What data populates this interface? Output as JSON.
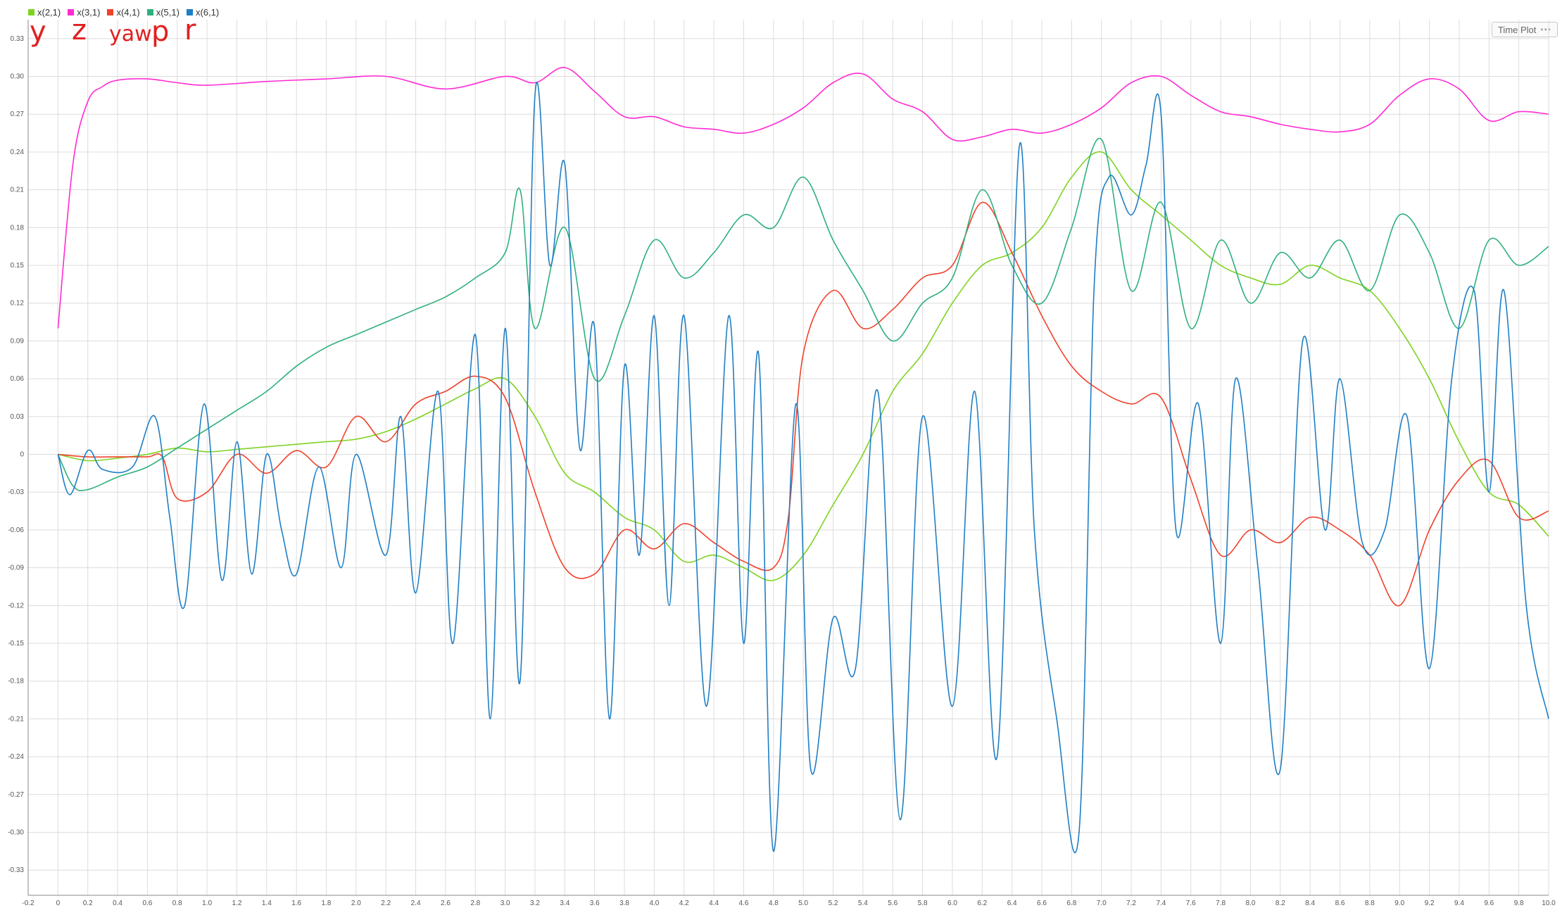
{
  "legend": [
    {
      "label": "x(2,1)",
      "color": "#7ed321"
    },
    {
      "label": "x(3,1)",
      "color": "#ff2ad4"
    },
    {
      "label": "x(4,1)",
      "color": "#f0412a"
    },
    {
      "label": "x(5,1)",
      "color": "#2eb07a"
    },
    {
      "label": "x(6,1)",
      "color": "#1f7ec4"
    }
  ],
  "toolbar": {
    "time_plot_label": "Time Plot",
    "more_label": "•••"
  },
  "annotations": [
    "y",
    "z",
    "yaw",
    "p",
    "r"
  ],
  "chart_data": {
    "type": "line",
    "title": "",
    "xlabel": "",
    "ylabel": "",
    "xlim": [
      -0.2,
      10.0
    ],
    "ylim": [
      -0.35,
      0.345
    ],
    "grid": true,
    "legend_position": "top-left",
    "x_ticks": [
      "-0.2",
      "0",
      "0.2",
      "0.4",
      "0.6",
      "0.8",
      "1.0",
      "1.2",
      "1.4",
      "1.6",
      "1.8",
      "2.0",
      "2.2",
      "2.4",
      "2.6",
      "2.8",
      "3.0",
      "3.2",
      "3.4",
      "3.6",
      "3.8",
      "4.0",
      "4.2",
      "4.4",
      "4.6",
      "4.8",
      "5.0",
      "5.2",
      "5.4",
      "5.6",
      "5.8",
      "6.0",
      "6.2",
      "6.4",
      "6.6",
      "6.8",
      "7.0",
      "7.2",
      "7.4",
      "7.6",
      "7.8",
      "8.0",
      "8.2",
      "8.4",
      "8.6",
      "8.8",
      "9.0",
      "9.2",
      "9.4",
      "9.6",
      "9.8",
      "10.0"
    ],
    "y_ticks": [
      "0.33",
      "0.30",
      "0.27",
      "0.24",
      "0.21",
      "0.18",
      "0.15",
      "0.12",
      "0.09",
      "0.06",
      "0.03",
      "0",
      "-0.03",
      "-0.06",
      "-0.09",
      "-0.12",
      "-0.15",
      "-0.18",
      "-0.21",
      "-0.24",
      "-0.27",
      "-0.30",
      "-0.33"
    ],
    "series": [
      {
        "name": "x(2,1)",
        "color": "#7ed321",
        "x": [
          0,
          0.2,
          0.4,
          0.6,
          0.8,
          1.0,
          1.2,
          1.4,
          1.6,
          1.8,
          2.0,
          2.2,
          2.4,
          2.6,
          2.8,
          3.0,
          3.2,
          3.4,
          3.6,
          3.8,
          4.0,
          4.2,
          4.4,
          4.6,
          4.8,
          5.0,
          5.2,
          5.4,
          5.6,
          5.8,
          6.0,
          6.2,
          6.4,
          6.6,
          6.8,
          7.0,
          7.2,
          7.4,
          7.6,
          7.8,
          8.0,
          8.2,
          8.4,
          8.6,
          8.8,
          9.0,
          9.2,
          9.4,
          9.6,
          9.8,
          10.0
        ],
        "y": [
          0,
          -0.005,
          -0.003,
          0,
          0.005,
          0.002,
          0.004,
          0.006,
          0.008,
          0.01,
          0.012,
          0.018,
          0.028,
          0.04,
          0.052,
          0.06,
          0.03,
          -0.015,
          -0.03,
          -0.05,
          -0.06,
          -0.085,
          -0.08,
          -0.09,
          -0.1,
          -0.08,
          -0.04,
          0.0,
          0.05,
          0.08,
          0.12,
          0.15,
          0.16,
          0.18,
          0.22,
          0.24,
          0.21,
          0.19,
          0.17,
          0.15,
          0.14,
          0.135,
          0.15,
          0.14,
          0.13,
          0.1,
          0.06,
          0.01,
          -0.03,
          -0.04,
          -0.065
        ]
      },
      {
        "name": "x(3,1)",
        "color": "#ff2ad4",
        "x": [
          0,
          0.1,
          0.2,
          0.3,
          0.4,
          0.6,
          0.8,
          1.0,
          1.4,
          1.8,
          2.2,
          2.6,
          3.0,
          3.2,
          3.4,
          3.6,
          3.8,
          4.0,
          4.2,
          4.4,
          4.6,
          4.8,
          5.0,
          5.2,
          5.4,
          5.6,
          5.8,
          6.0,
          6.2,
          6.4,
          6.6,
          6.8,
          7.0,
          7.2,
          7.4,
          7.6,
          7.8,
          8.0,
          8.2,
          8.4,
          8.6,
          8.8,
          9.0,
          9.2,
          9.4,
          9.6,
          9.8,
          10.0
        ],
        "y": [
          0.1,
          0.23,
          0.28,
          0.292,
          0.297,
          0.298,
          0.295,
          0.293,
          0.296,
          0.298,
          0.3,
          0.29,
          0.3,
          0.295,
          0.307,
          0.288,
          0.268,
          0.268,
          0.26,
          0.258,
          0.255,
          0.262,
          0.275,
          0.295,
          0.302,
          0.282,
          0.272,
          0.25,
          0.252,
          0.258,
          0.255,
          0.262,
          0.275,
          0.295,
          0.3,
          0.285,
          0.272,
          0.268,
          0.262,
          0.258,
          0.256,
          0.262,
          0.285,
          0.298,
          0.29,
          0.265,
          0.272,
          0.27
        ]
      },
      {
        "name": "x(4,1)",
        "color": "#f0412a",
        "x": [
          0,
          0.2,
          0.4,
          0.6,
          0.7,
          0.8,
          1.0,
          1.2,
          1.4,
          1.6,
          1.8,
          2.0,
          2.2,
          2.4,
          2.6,
          2.8,
          3.0,
          3.2,
          3.4,
          3.6,
          3.8,
          4.0,
          4.2,
          4.4,
          4.6,
          4.8,
          4.9,
          5.0,
          5.2,
          5.4,
          5.6,
          5.8,
          6.0,
          6.2,
          6.4,
          6.6,
          6.8,
          7.0,
          7.2,
          7.4,
          7.6,
          7.8,
          8.0,
          8.2,
          8.4,
          8.6,
          8.8,
          9.0,
          9.2,
          9.4,
          9.6,
          9.8,
          10.0
        ],
        "y": [
          0,
          -0.002,
          -0.002,
          -0.002,
          -0.002,
          -0.035,
          -0.03,
          0.0,
          -0.015,
          0.003,
          -0.01,
          0.03,
          0.01,
          0.04,
          0.05,
          0.062,
          0.045,
          -0.03,
          -0.09,
          -0.095,
          -0.06,
          -0.075,
          -0.055,
          -0.07,
          -0.085,
          -0.09,
          -0.05,
          0.08,
          0.13,
          0.1,
          0.115,
          0.14,
          0.15,
          0.2,
          0.16,
          0.11,
          0.07,
          0.05,
          0.04,
          0.045,
          -0.02,
          -0.08,
          -0.06,
          -0.07,
          -0.05,
          -0.06,
          -0.08,
          -0.12,
          -0.06,
          -0.02,
          -0.005,
          -0.05,
          -0.045
        ]
      },
      {
        "name": "x(5,1)",
        "color": "#2eb07a",
        "x": [
          0,
          0.1,
          0.2,
          0.4,
          0.6,
          0.8,
          1.0,
          1.2,
          1.4,
          1.6,
          1.8,
          2.0,
          2.2,
          2.4,
          2.6,
          2.8,
          3.0,
          3.1,
          3.2,
          3.4,
          3.6,
          3.8,
          4.0,
          4.2,
          4.4,
          4.6,
          4.8,
          5.0,
          5.2,
          5.4,
          5.6,
          5.8,
          6.0,
          6.2,
          6.4,
          6.6,
          6.8,
          7.0,
          7.2,
          7.4,
          7.6,
          7.8,
          8.0,
          8.2,
          8.4,
          8.6,
          8.8,
          9.0,
          9.2,
          9.4,
          9.6,
          9.8,
          10.0
        ],
        "y": [
          0,
          -0.025,
          -0.028,
          -0.018,
          -0.01,
          0.005,
          0.02,
          0.035,
          0.05,
          0.07,
          0.085,
          0.095,
          0.105,
          0.115,
          0.125,
          0.14,
          0.16,
          0.21,
          0.1,
          0.18,
          0.06,
          0.11,
          0.17,
          0.14,
          0.16,
          0.19,
          0.18,
          0.22,
          0.17,
          0.13,
          0.09,
          0.12,
          0.14,
          0.21,
          0.15,
          0.12,
          0.18,
          0.25,
          0.13,
          0.2,
          0.1,
          0.17,
          0.12,
          0.16,
          0.14,
          0.17,
          0.13,
          0.19,
          0.16,
          0.1,
          0.17,
          0.15,
          0.165
        ]
      },
      {
        "name": "x(6,1)",
        "color": "#1f7ec4",
        "x": [
          0,
          0.08,
          0.2,
          0.3,
          0.5,
          0.65,
          0.75,
          0.85,
          0.98,
          1.1,
          1.2,
          1.3,
          1.4,
          1.5,
          1.6,
          1.75,
          1.9,
          2.0,
          2.2,
          2.3,
          2.4,
          2.55,
          2.65,
          2.8,
          2.9,
          3.0,
          3.1,
          3.2,
          3.3,
          3.4,
          3.5,
          3.6,
          3.7,
          3.8,
          3.9,
          4.0,
          4.1,
          4.2,
          4.35,
          4.5,
          4.6,
          4.7,
          4.8,
          4.95,
          5.05,
          5.2,
          5.35,
          5.5,
          5.65,
          5.8,
          6.0,
          6.15,
          6.3,
          6.45,
          6.55,
          6.7,
          6.85,
          6.95,
          7.05,
          7.2,
          7.3,
          7.4,
          7.5,
          7.65,
          7.8,
          7.9,
          8.05,
          8.2,
          8.35,
          8.5,
          8.6,
          8.75,
          8.9,
          9.05,
          9.2,
          9.35,
          9.5,
          9.6,
          9.7,
          9.85,
          10.0
        ],
        "y": [
          0,
          -0.032,
          0.003,
          -0.012,
          -0.01,
          0.03,
          -0.05,
          -0.12,
          0.04,
          -0.1,
          0.01,
          -0.095,
          0.0,
          -0.06,
          -0.095,
          -0.01,
          -0.09,
          0.0,
          -0.08,
          0.03,
          -0.11,
          0.05,
          -0.15,
          0.095,
          -0.21,
          0.1,
          -0.18,
          0.285,
          0.15,
          0.23,
          0.005,
          0.1,
          -0.21,
          0.07,
          -0.08,
          0.11,
          -0.12,
          0.11,
          -0.2,
          0.11,
          -0.15,
          0.08,
          -0.315,
          0.04,
          -0.25,
          -0.13,
          -0.17,
          0.05,
          -0.29,
          0.03,
          -0.2,
          0.05,
          -0.24,
          0.245,
          -0.06,
          -0.21,
          -0.3,
          0.13,
          0.22,
          0.19,
          0.23,
          0.27,
          -0.06,
          0.04,
          -0.15,
          0.06,
          -0.09,
          -0.25,
          0.09,
          -0.06,
          0.06,
          -0.07,
          -0.06,
          0.03,
          -0.17,
          0.06,
          0.13,
          -0.03,
          0.13,
          -0.12,
          -0.21
        ]
      }
    ]
  }
}
